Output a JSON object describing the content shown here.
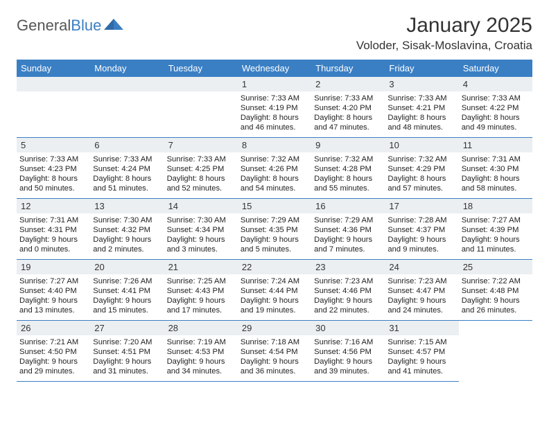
{
  "logo": {
    "part1": "General",
    "part2": "Blue"
  },
  "title": "January 2025",
  "location": "Voloder, Sisak-Moslavina, Croatia",
  "colors": {
    "brand_blue": "#3a7fc4",
    "header_bg": "#3a7fc4",
    "daynum_bg": "#eceff1",
    "text": "#333333",
    "cell_border": "#3a7fc4",
    "page_bg": "#ffffff"
  },
  "weekdays": [
    "Sunday",
    "Monday",
    "Tuesday",
    "Wednesday",
    "Thursday",
    "Friday",
    "Saturday"
  ],
  "leading_blanks": 3,
  "days": [
    {
      "n": 1,
      "sr": "7:33 AM",
      "ss": "4:19 PM",
      "dh": 8,
      "dm": 46
    },
    {
      "n": 2,
      "sr": "7:33 AM",
      "ss": "4:20 PM",
      "dh": 8,
      "dm": 47
    },
    {
      "n": 3,
      "sr": "7:33 AM",
      "ss": "4:21 PM",
      "dh": 8,
      "dm": 48
    },
    {
      "n": 4,
      "sr": "7:33 AM",
      "ss": "4:22 PM",
      "dh": 8,
      "dm": 49
    },
    {
      "n": 5,
      "sr": "7:33 AM",
      "ss": "4:23 PM",
      "dh": 8,
      "dm": 50
    },
    {
      "n": 6,
      "sr": "7:33 AM",
      "ss": "4:24 PM",
      "dh": 8,
      "dm": 51
    },
    {
      "n": 7,
      "sr": "7:33 AM",
      "ss": "4:25 PM",
      "dh": 8,
      "dm": 52
    },
    {
      "n": 8,
      "sr": "7:32 AM",
      "ss": "4:26 PM",
      "dh": 8,
      "dm": 54
    },
    {
      "n": 9,
      "sr": "7:32 AM",
      "ss": "4:28 PM",
      "dh": 8,
      "dm": 55
    },
    {
      "n": 10,
      "sr": "7:32 AM",
      "ss": "4:29 PM",
      "dh": 8,
      "dm": 57
    },
    {
      "n": 11,
      "sr": "7:31 AM",
      "ss": "4:30 PM",
      "dh": 8,
      "dm": 58
    },
    {
      "n": 12,
      "sr": "7:31 AM",
      "ss": "4:31 PM",
      "dh": 9,
      "dm": 0
    },
    {
      "n": 13,
      "sr": "7:30 AM",
      "ss": "4:32 PM",
      "dh": 9,
      "dm": 2
    },
    {
      "n": 14,
      "sr": "7:30 AM",
      "ss": "4:34 PM",
      "dh": 9,
      "dm": 3
    },
    {
      "n": 15,
      "sr": "7:29 AM",
      "ss": "4:35 PM",
      "dh": 9,
      "dm": 5
    },
    {
      "n": 16,
      "sr": "7:29 AM",
      "ss": "4:36 PM",
      "dh": 9,
      "dm": 7
    },
    {
      "n": 17,
      "sr": "7:28 AM",
      "ss": "4:37 PM",
      "dh": 9,
      "dm": 9
    },
    {
      "n": 18,
      "sr": "7:27 AM",
      "ss": "4:39 PM",
      "dh": 9,
      "dm": 11
    },
    {
      "n": 19,
      "sr": "7:27 AM",
      "ss": "4:40 PM",
      "dh": 9,
      "dm": 13
    },
    {
      "n": 20,
      "sr": "7:26 AM",
      "ss": "4:41 PM",
      "dh": 9,
      "dm": 15
    },
    {
      "n": 21,
      "sr": "7:25 AM",
      "ss": "4:43 PM",
      "dh": 9,
      "dm": 17
    },
    {
      "n": 22,
      "sr": "7:24 AM",
      "ss": "4:44 PM",
      "dh": 9,
      "dm": 19
    },
    {
      "n": 23,
      "sr": "7:23 AM",
      "ss": "4:46 PM",
      "dh": 9,
      "dm": 22
    },
    {
      "n": 24,
      "sr": "7:23 AM",
      "ss": "4:47 PM",
      "dh": 9,
      "dm": 24
    },
    {
      "n": 25,
      "sr": "7:22 AM",
      "ss": "4:48 PM",
      "dh": 9,
      "dm": 26
    },
    {
      "n": 26,
      "sr": "7:21 AM",
      "ss": "4:50 PM",
      "dh": 9,
      "dm": 29
    },
    {
      "n": 27,
      "sr": "7:20 AM",
      "ss": "4:51 PM",
      "dh": 9,
      "dm": 31
    },
    {
      "n": 28,
      "sr": "7:19 AM",
      "ss": "4:53 PM",
      "dh": 9,
      "dm": 34
    },
    {
      "n": 29,
      "sr": "7:18 AM",
      "ss": "4:54 PM",
      "dh": 9,
      "dm": 36
    },
    {
      "n": 30,
      "sr": "7:16 AM",
      "ss": "4:56 PM",
      "dh": 9,
      "dm": 39
    },
    {
      "n": 31,
      "sr": "7:15 AM",
      "ss": "4:57 PM",
      "dh": 9,
      "dm": 41
    }
  ],
  "labels": {
    "sunrise": "Sunrise:",
    "sunset": "Sunset:",
    "daylight": "Daylight:",
    "hours_word": "hours",
    "and_word": "and",
    "minutes_word": "minutes."
  }
}
